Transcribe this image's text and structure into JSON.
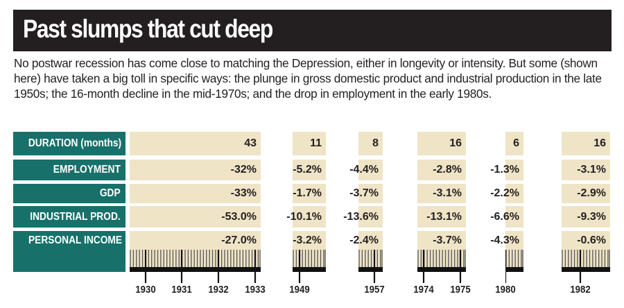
{
  "title": "Past slumps that cut deep",
  "intro": "No postwar recession has come close to matching the Depression, either in longevity or intensity. But some (shown here) have taken a big toll in specific ways: the plunge in gross domestic product and industrial production in the late 1950s; the 16-month decline in the mid-1970s; and the drop in employment in the early 1980s.",
  "colors": {
    "label_bg": "#17716a",
    "cell_bg": "#efe4c6",
    "title_bg": "#231f20"
  },
  "chart_data": {
    "type": "table",
    "title": "Past slumps that cut deep",
    "row_labels": [
      "DURATION (months)",
      "EMPLOYMENT",
      "GDP",
      "INDUSTRIAL PROD.",
      "PERSONAL INCOME"
    ],
    "recessions": [
      {
        "years": [
          "1930",
          "1931",
          "1932",
          "1933"
        ],
        "values": [
          "43",
          "-32%",
          "-33%",
          "-53.0%",
          "-27.0%"
        ],
        "duration_months": 43
      },
      {
        "years": [
          "1949"
        ],
        "values": [
          "11",
          "-5.2%",
          "-1.7%",
          "-10.1%",
          "-3.2%"
        ],
        "duration_months": 11
      },
      {
        "years": [
          "1957"
        ],
        "values": [
          "8",
          "-4.4%",
          "-3.7%",
          "-13.6%",
          "-2.4%"
        ],
        "duration_months": 8
      },
      {
        "years": [
          "1974",
          "1975"
        ],
        "values": [
          "16",
          "-2.8%",
          "-3.1%",
          "-13.1%",
          "-3.7%"
        ],
        "duration_months": 16
      },
      {
        "years": [
          "1980"
        ],
        "values": [
          "6",
          "-1.3%",
          "-2.2%",
          "-6.6%",
          "-4.3%"
        ],
        "duration_months": 6
      },
      {
        "years": [
          "1982"
        ],
        "values": [
          "16",
          "-3.1%",
          "-2.9%",
          "-9.3%",
          "-0.6%"
        ],
        "duration_months": 16
      }
    ]
  }
}
